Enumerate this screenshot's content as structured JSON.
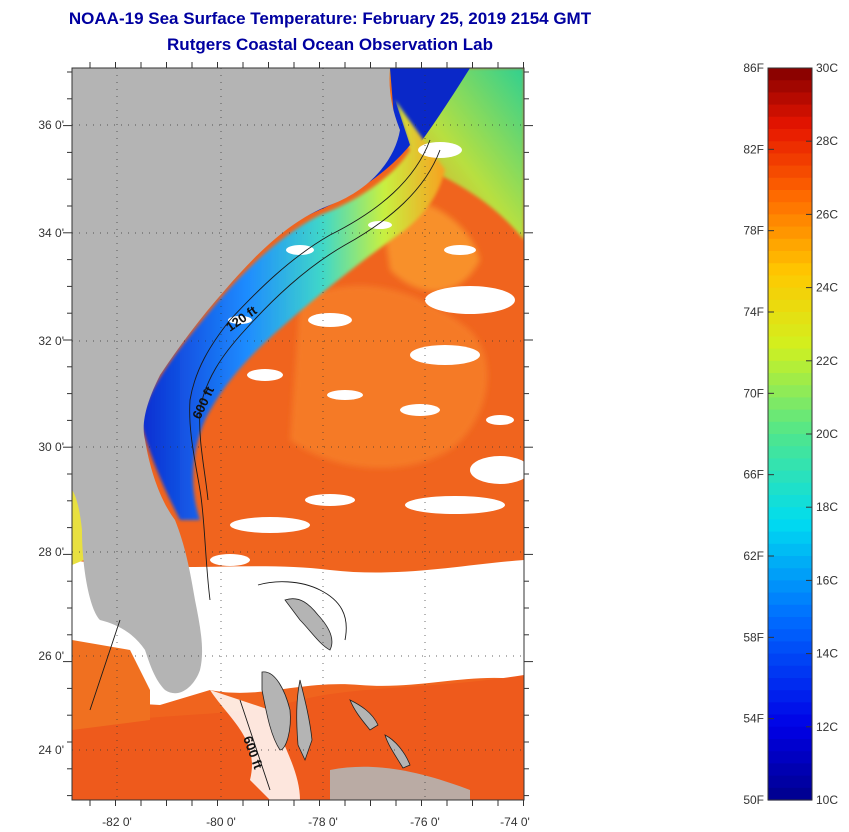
{
  "header": {
    "title": "NOAA-19 Sea Surface Temperature:  February 25, 2019 2154 GMT",
    "subtitle": "Rutgers Coastal Ocean Observation Lab"
  },
  "map": {
    "lat_labels": [
      "36 0'",
      "34 0'",
      "32 0'",
      "30 0'",
      "28 0'",
      "26 0'",
      "24 0'"
    ],
    "lon_labels": [
      "-82 0'",
      "-80 0'",
      "-78 0'",
      "-76 0'",
      "-74 0'"
    ],
    "contour_labels": {
      "c120_north": "120 ft",
      "c600_north": "600 ft",
      "c600_south": "600 ft"
    }
  },
  "colorbar": {
    "fahrenheit_labels": [
      "86F",
      "82F",
      "78F",
      "74F",
      "70F",
      "66F",
      "62F",
      "58F",
      "54F",
      "50F"
    ],
    "celsius_labels": [
      "30C",
      "28C",
      "26C",
      "24C",
      "22C",
      "20C",
      "18C",
      "16C",
      "14C",
      "12C",
      "10C"
    ]
  },
  "colors": {
    "land": "#b4b4b4",
    "title": "#0000a0",
    "cloud": "#ffffff",
    "warm": "#f05a1e",
    "cold": "#0a28c8"
  }
}
